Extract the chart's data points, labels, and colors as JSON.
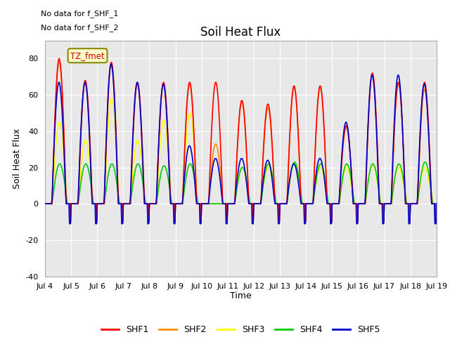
{
  "title": "Soil Heat Flux",
  "ylabel": "Soil Heat Flux",
  "xlabel": "Time",
  "ylim": [
    -40,
    90
  ],
  "xlim": [
    0,
    360
  ],
  "background_color": "#e8e8e8",
  "text_annotations": [
    "No data for f_SHF_1",
    "No data for f_SHF_2"
  ],
  "tz_label": "TZ_fmet",
  "legend": [
    "SHF1",
    "SHF2",
    "SHF3",
    "SHF4",
    "SHF5"
  ],
  "colors": {
    "SHF1": "#ff0000",
    "SHF2": "#ff8c00",
    "SHF3": "#ffff00",
    "SHF4": "#00cc00",
    "SHF5": "#0000cc"
  },
  "xtick_labels": [
    "Jul 4",
    "Jul 5",
    "Jul 6",
    "Jul 7",
    "Jul 8",
    "Jul 9",
    "Jul 10",
    "Jul 11",
    "Jul 12",
    "Jul 13",
    "Jul 14",
    "Jul 15",
    "Jul 16",
    "Jul 17",
    "Jul 18",
    "Jul 19"
  ],
  "xtick_positions": [
    0,
    24,
    48,
    72,
    96,
    120,
    144,
    168,
    192,
    216,
    240,
    264,
    288,
    312,
    336,
    360
  ],
  "ytick_positions": [
    -40,
    -20,
    0,
    20,
    40,
    60,
    80
  ],
  "grid_color": "#ffffff",
  "line_width": 1.2
}
